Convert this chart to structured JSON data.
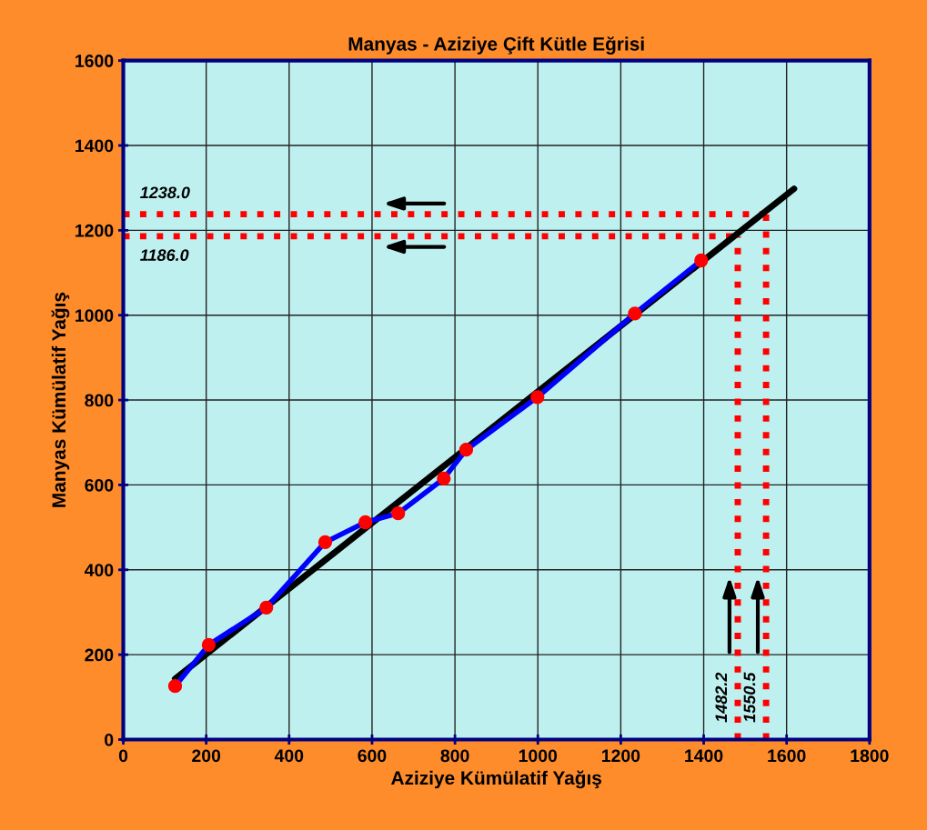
{
  "chart_data": {
    "type": "line",
    "title": "Manyas - Aziziye Çift Kütle Eğrisi",
    "xlabel": "Aziziye Kümülatif Yağış",
    "ylabel": "Manyas Kümülatif Yağış",
    "xlim": [
      0,
      1800
    ],
    "xticks": [
      0,
      200,
      400,
      600,
      800,
      1000,
      1200,
      1400,
      1600,
      1800
    ],
    "ylim": [
      0,
      1600
    ],
    "yticks": [
      0,
      200,
      400,
      600,
      800,
      1000,
      1200,
      1400,
      1600
    ],
    "grid": true,
    "legend": false,
    "series": [
      {
        "color": "#0000ff",
        "marker": "circle",
        "x": [
          125,
          206,
          345,
          487,
          584,
          663,
          773,
          827,
          999,
          1234,
          1394
        ],
        "values": [
          126,
          223,
          311,
          465,
          512,
          533,
          615,
          683,
          807,
          1004,
          1129
        ]
      },
      {
        "color": "#000000",
        "marker": "none",
        "x": [
          125,
          1618
        ],
        "values": [
          143,
          1298
        ]
      }
    ],
    "ref_lines": [
      {
        "axis": "y",
        "value": 1238.0,
        "label": "1238.0",
        "color": "#ff0000",
        "line_style": "dotted"
      },
      {
        "axis": "y",
        "value": 1186.0,
        "label": "1186.0",
        "color": "#ff0000",
        "line_style": "dotted"
      },
      {
        "axis": "x",
        "value": 1550.5,
        "label": "1550.5",
        "color": "#ff0000",
        "line_style": "dotted"
      },
      {
        "axis": "x",
        "value": 1482.2,
        "label": "1482.2",
        "color": "#ff0000",
        "line_style": "dotted"
      }
    ]
  }
}
